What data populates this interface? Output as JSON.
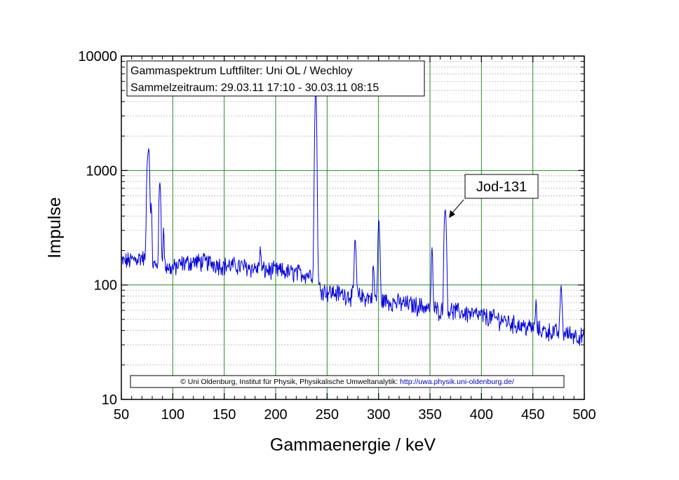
{
  "chart_data": {
    "type": "line",
    "title": "",
    "xlabel": "Gammaenergie / keV",
    "ylabel": "Impulse",
    "xlim": [
      50,
      500
    ],
    "ylim": [
      10,
      10000
    ],
    "yscale": "log",
    "grid": true,
    "x_ticks": [
      50,
      100,
      150,
      200,
      250,
      300,
      350,
      400,
      450,
      500
    ],
    "x_tick_labels": [
      "50",
      "100",
      "150",
      "200",
      "250",
      "300",
      "350",
      "400",
      "450",
      "500"
    ],
    "y_ticks": [
      10,
      100,
      1000,
      10000
    ],
    "y_tick_labels": [
      "10",
      "100",
      "1000",
      "10000"
    ],
    "info_box": {
      "line1": "Gammaspektrum Luftfilter: Uni OL / Wechloy",
      "line2": "Sammelzeitraum: 29.03.11 17:10 - 30.03.11 08:15"
    },
    "annotation": {
      "label": "Jod-131",
      "x": 364,
      "y": 370
    },
    "credit": {
      "text": "© Uni Oldenburg, Institut für Physik, Physikalische Umweltanalytik: ",
      "link": "http://uwa.physik.uni-oldenburg.de/"
    },
    "series": [
      {
        "color": "#0000dd",
        "baseline": [
          [
            50,
            160
          ],
          [
            60,
            165
          ],
          [
            70,
            175
          ],
          [
            80,
            150
          ],
          [
            90,
            145
          ],
          [
            100,
            140
          ],
          [
            110,
            155
          ],
          [
            120,
            160
          ],
          [
            130,
            160
          ],
          [
            140,
            155
          ],
          [
            150,
            148
          ],
          [
            160,
            148
          ],
          [
            170,
            145
          ],
          [
            180,
            140
          ],
          [
            190,
            135
          ],
          [
            200,
            135
          ],
          [
            210,
            130
          ],
          [
            220,
            128
          ],
          [
            230,
            125
          ],
          [
            238,
            122
          ],
          [
            242,
            95
          ],
          [
            250,
            88
          ],
          [
            260,
            85
          ],
          [
            270,
            82
          ],
          [
            280,
            80
          ],
          [
            290,
            78
          ],
          [
            300,
            75
          ],
          [
            310,
            72
          ],
          [
            320,
            70
          ],
          [
            330,
            68
          ],
          [
            340,
            66
          ],
          [
            350,
            63
          ],
          [
            360,
            60
          ],
          [
            370,
            60
          ],
          [
            380,
            58
          ],
          [
            390,
            56
          ],
          [
            400,
            54
          ],
          [
            410,
            52
          ],
          [
            420,
            50
          ],
          [
            430,
            46
          ],
          [
            440,
            44
          ],
          [
            450,
            42
          ],
          [
            460,
            40
          ],
          [
            470,
            39
          ],
          [
            480,
            38
          ],
          [
            490,
            37
          ],
          [
            500,
            35
          ]
        ],
        "peaks": [
          [
            75,
            900
          ],
          [
            77,
            1250
          ],
          [
            76,
            1000
          ],
          [
            79,
            500
          ],
          [
            87,
            630
          ],
          [
            88,
            550
          ],
          [
            91,
            300
          ],
          [
            185,
            210
          ],
          [
            238,
            1200
          ],
          [
            239,
            5500
          ],
          [
            240,
            600
          ],
          [
            277,
            230
          ],
          [
            278,
            160
          ],
          [
            295,
            150
          ],
          [
            300,
            330
          ],
          [
            301,
            220
          ],
          [
            352,
            220
          ],
          [
            364,
            300
          ],
          [
            365,
            370
          ],
          [
            366,
            180
          ],
          [
            453,
            68
          ],
          [
            477,
            80
          ],
          [
            478,
            75
          ]
        ]
      }
    ]
  }
}
